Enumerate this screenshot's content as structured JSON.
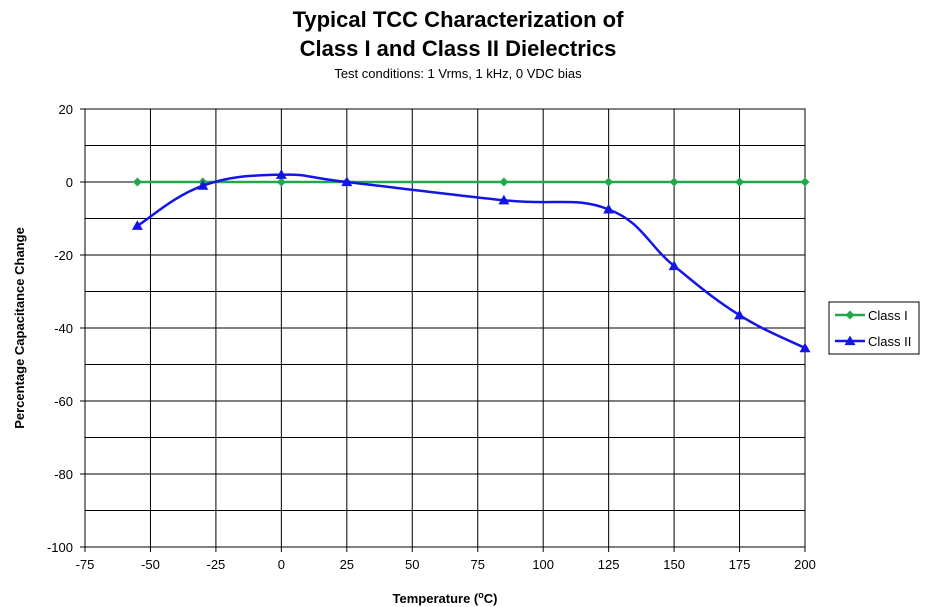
{
  "chart_data": {
    "type": "line",
    "title_lines": [
      "Typical TCC Characterization of",
      "Class I and Class II Dielectrics"
    ],
    "subtitle": "Test conditions: 1 Vrms, 1 kHz, 0 VDC bias",
    "xlabel_prefix": "Temperature (",
    "xlabel_sup": "o",
    "xlabel_suffix": "C)",
    "ylabel": "Percentage Capacitance Change",
    "xlim": [
      -75,
      200
    ],
    "ylim": [
      -100,
      20
    ],
    "x_ticks": [
      -75,
      -50,
      -25,
      0,
      25,
      50,
      75,
      100,
      125,
      150,
      175,
      200
    ],
    "y_ticks": [
      -100,
      -80,
      -60,
      -40,
      -20,
      0,
      20
    ],
    "grid": true,
    "legend_position": "right",
    "series": [
      {
        "name": "Class I",
        "color": "#22a84a",
        "marker": "diamond",
        "x": [
          -55,
          -30,
          0,
          25,
          85,
          125,
          150,
          175,
          200
        ],
        "y": [
          0,
          0,
          0,
          0,
          0,
          0,
          0,
          0,
          0
        ]
      },
      {
        "name": "Class II",
        "color": "#1414e6",
        "marker": "triangle",
        "x": [
          -55,
          -30,
          0,
          25,
          85,
          125,
          150,
          175,
          200
        ],
        "y": [
          -12,
          -1,
          2,
          0,
          -5,
          -7.5,
          -23,
          -36.5,
          -45.5
        ]
      }
    ]
  }
}
